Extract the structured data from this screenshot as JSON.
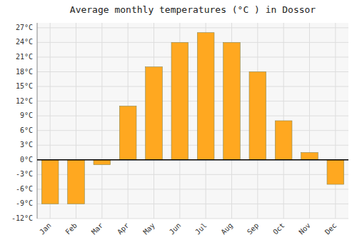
{
  "chart_data": {
    "type": "bar",
    "title": "Average monthly temperatures (°C ) in Dossor",
    "categories": [
      "Jan",
      "Feb",
      "Mar",
      "Apr",
      "May",
      "Jun",
      "Jul",
      "Aug",
      "Sep",
      "Oct",
      "Nov",
      "Dec"
    ],
    "values": [
      -9,
      -9,
      -1,
      11,
      19,
      24,
      26,
      24,
      18,
      8,
      1.5,
      -5
    ],
    "color": "#FFA820",
    "ylim": [
      -12,
      28
    ],
    "yticks": [
      {
        "value": -12,
        "label": "-12°C"
      },
      {
        "value": -9,
        "label": "-9°C"
      },
      {
        "value": -6,
        "label": "-6°C"
      },
      {
        "value": -3,
        "label": "-3°C"
      },
      {
        "value": 0,
        "label": "0°C"
      },
      {
        "value": 3,
        "label": "3°C"
      },
      {
        "value": 6,
        "label": "6°C"
      },
      {
        "value": 9,
        "label": "9°C"
      },
      {
        "value": 12,
        "label": "12°C"
      },
      {
        "value": 15,
        "label": "15°C"
      },
      {
        "value": 18,
        "label": "18°C"
      },
      {
        "value": 21,
        "label": "21°C"
      },
      {
        "value": 24,
        "label": "24°C"
      },
      {
        "value": 27,
        "label": "27°C"
      }
    ],
    "grid": true
  }
}
